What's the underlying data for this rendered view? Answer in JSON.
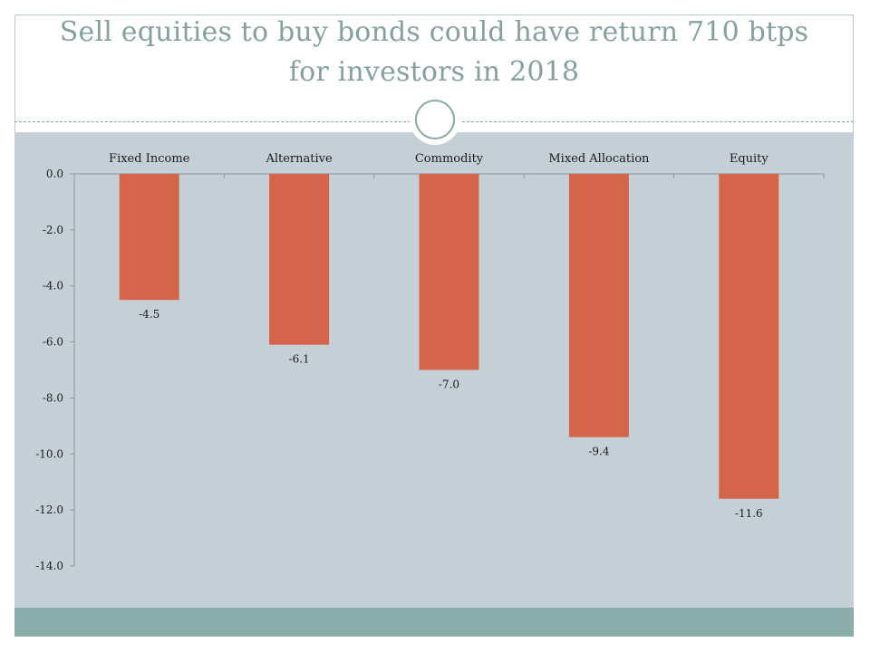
{
  "slide": {
    "title_line1": "Sell equities to buy bonds could have return 710 btps",
    "title_line2": "for investors in 2018"
  },
  "colors": {
    "bar": "#d4654a",
    "panel": "#c5cfd6",
    "footer": "#8aacab",
    "title": "#86a0a1",
    "axis": "#8c9aa0"
  },
  "chart_data": {
    "type": "bar",
    "categories": [
      "Fixed Income",
      "Alternative",
      "Commodity",
      "Mixed Allocation",
      "Equity"
    ],
    "values": [
      -4.5,
      -6.1,
      -7.0,
      -9.4,
      -11.6
    ],
    "data_labels": [
      "-4.5",
      "-6.1",
      "-7.0",
      "-9.4",
      "-11.6"
    ],
    "yticks": [
      0,
      -2,
      -4,
      -6,
      -8,
      -10,
      -12,
      -14
    ],
    "ytick_labels": [
      "0.0",
      "-2.0",
      "-4.0",
      "-6.0",
      "-8.0",
      "-10.0",
      "-12.0",
      "-14.0"
    ],
    "ylim": [
      -14,
      0
    ],
    "category_axis_position": "top",
    "grid": false,
    "legend": "none",
    "title": "",
    "xlabel": "",
    "ylabel": ""
  }
}
